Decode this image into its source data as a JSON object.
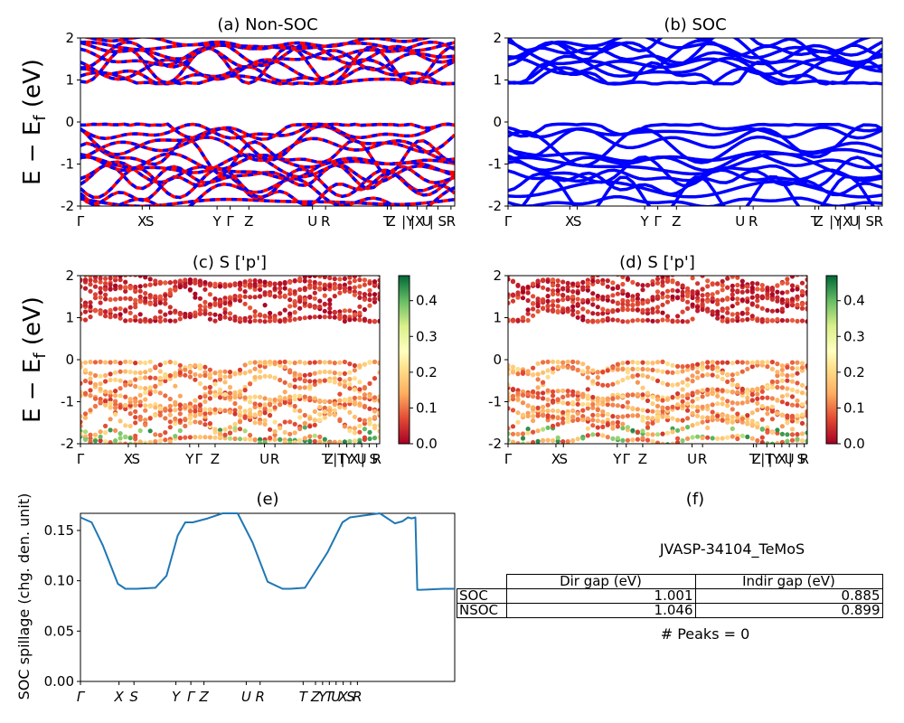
{
  "chart_data": [
    {
      "panel": "a",
      "type": "line",
      "title": "(a) Non-SOC",
      "ylabel": "E − E_f (eV)",
      "ylim": [
        -2,
        2
      ],
      "yticks": [
        -2,
        -1,
        0,
        1,
        2
      ],
      "xtick_labels": [
        "Γ",
        "X",
        "S",
        "Y",
        "Γ",
        "Z",
        "U",
        "R",
        "T",
        "Z",
        "|Y",
        "|X",
        "U",
        "| S",
        "R"
      ],
      "series": [
        {
          "color": "#ff0000",
          "style": "solid"
        },
        {
          "color": "#0000ff",
          "style": "dashed"
        }
      ]
    },
    {
      "panel": "b",
      "type": "line",
      "title": "(b) SOC",
      "ylim": [
        -2,
        2
      ],
      "yticks": [
        -2,
        -1,
        0,
        1,
        2
      ],
      "xtick_labels": [
        "Γ",
        "X",
        "S",
        "Y",
        "Γ",
        "Z",
        "U",
        "R",
        "T",
        "Z",
        "|Y",
        "|X",
        "U",
        "| S",
        "R"
      ],
      "series": [
        {
          "color": "#0000ff",
          "style": "solid"
        }
      ]
    },
    {
      "panel": "c",
      "type": "scatter",
      "title": "(c)  S ['p']",
      "ylabel": "E − E_f (eV)",
      "ylim": [
        -2,
        2
      ],
      "yticks": [
        -2,
        -1,
        0,
        1,
        2
      ],
      "xtick_labels": [
        "Γ",
        "X",
        "S",
        "Y",
        "Γ",
        "Z",
        "U",
        "R",
        "T",
        "Z",
        "|T",
        "|Y",
        "X",
        "U",
        "| S",
        "R"
      ],
      "colorbar": {
        "cmap": "RdYlGn",
        "range": [
          0.0,
          0.47
        ],
        "ticks": [
          "0.0",
          "0.1",
          "0.2",
          "0.3",
          "0.4"
        ]
      }
    },
    {
      "panel": "d",
      "type": "scatter",
      "title": "(d) S ['p']",
      "ylim": [
        -2,
        2
      ],
      "yticks": [
        -2,
        -1,
        0,
        1,
        2
      ],
      "xtick_labels": [
        "Γ",
        "X",
        "S",
        "Y",
        "Γ",
        "Z",
        "U",
        "R",
        "T",
        "Z",
        "|T",
        "|Y",
        "X",
        "U",
        "| S",
        "R"
      ],
      "colorbar": {
        "cmap": "RdYlGn",
        "range": [
          0.0,
          0.47
        ],
        "ticks": [
          "0.0",
          "0.1",
          "0.2",
          "0.3",
          "0.4"
        ]
      }
    },
    {
      "panel": "e",
      "type": "line",
      "title": "(e)",
      "ylabel": "SOC spillage (chg. den. unit)",
      "ylim": [
        0,
        0.167
      ],
      "yticks": [
        "0.00",
        "0.05",
        "0.10",
        "0.15"
      ],
      "xtick_labels": [
        "Γ",
        "X",
        "S",
        "Y",
        "Γ",
        "Z",
        "U",
        "R",
        "T",
        "Z",
        "Y",
        "T",
        "U",
        "X",
        "S",
        "R"
      ],
      "series": [
        {
          "color": "#1f77b4",
          "x": [
            0,
            0.03,
            0.06,
            0.1,
            0.12,
            0.15,
            0.2,
            0.23,
            0.26,
            0.28,
            0.3,
            0.34,
            0.38,
            0.42,
            0.46,
            0.5,
            0.54,
            0.56,
            0.6,
            0.66,
            0.7,
            0.72,
            0.76,
            0.8,
            0.84,
            0.86,
            0.875,
            0.885,
            0.895,
            0.9,
            0.91,
            0.97,
            1.0
          ],
          "y": [
            0.163,
            0.158,
            0.135,
            0.097,
            0.092,
            0.092,
            0.093,
            0.105,
            0.145,
            0.158,
            0.158,
            0.162,
            0.167,
            0.167,
            0.138,
            0.099,
            0.092,
            0.092,
            0.093,
            0.128,
            0.158,
            0.163,
            0.165,
            0.167,
            0.157,
            0.159,
            0.163,
            0.162,
            0.163,
            0.091,
            0.091,
            0.092,
            0.092
          ]
        }
      ]
    }
  ],
  "panel_f": {
    "title": "(f)",
    "material": "JVASP-34104_TeMoS",
    "table": {
      "columns": [
        "Dir gap (eV)",
        "Indir gap (eV)"
      ],
      "rows": [
        {
          "label": "SOC",
          "dir": "1.001",
          "indir": "0.885"
        },
        {
          "label": "NSOC",
          "dir": "1.046",
          "indir": "0.899"
        }
      ]
    },
    "peaks": "# Peaks = 0"
  }
}
